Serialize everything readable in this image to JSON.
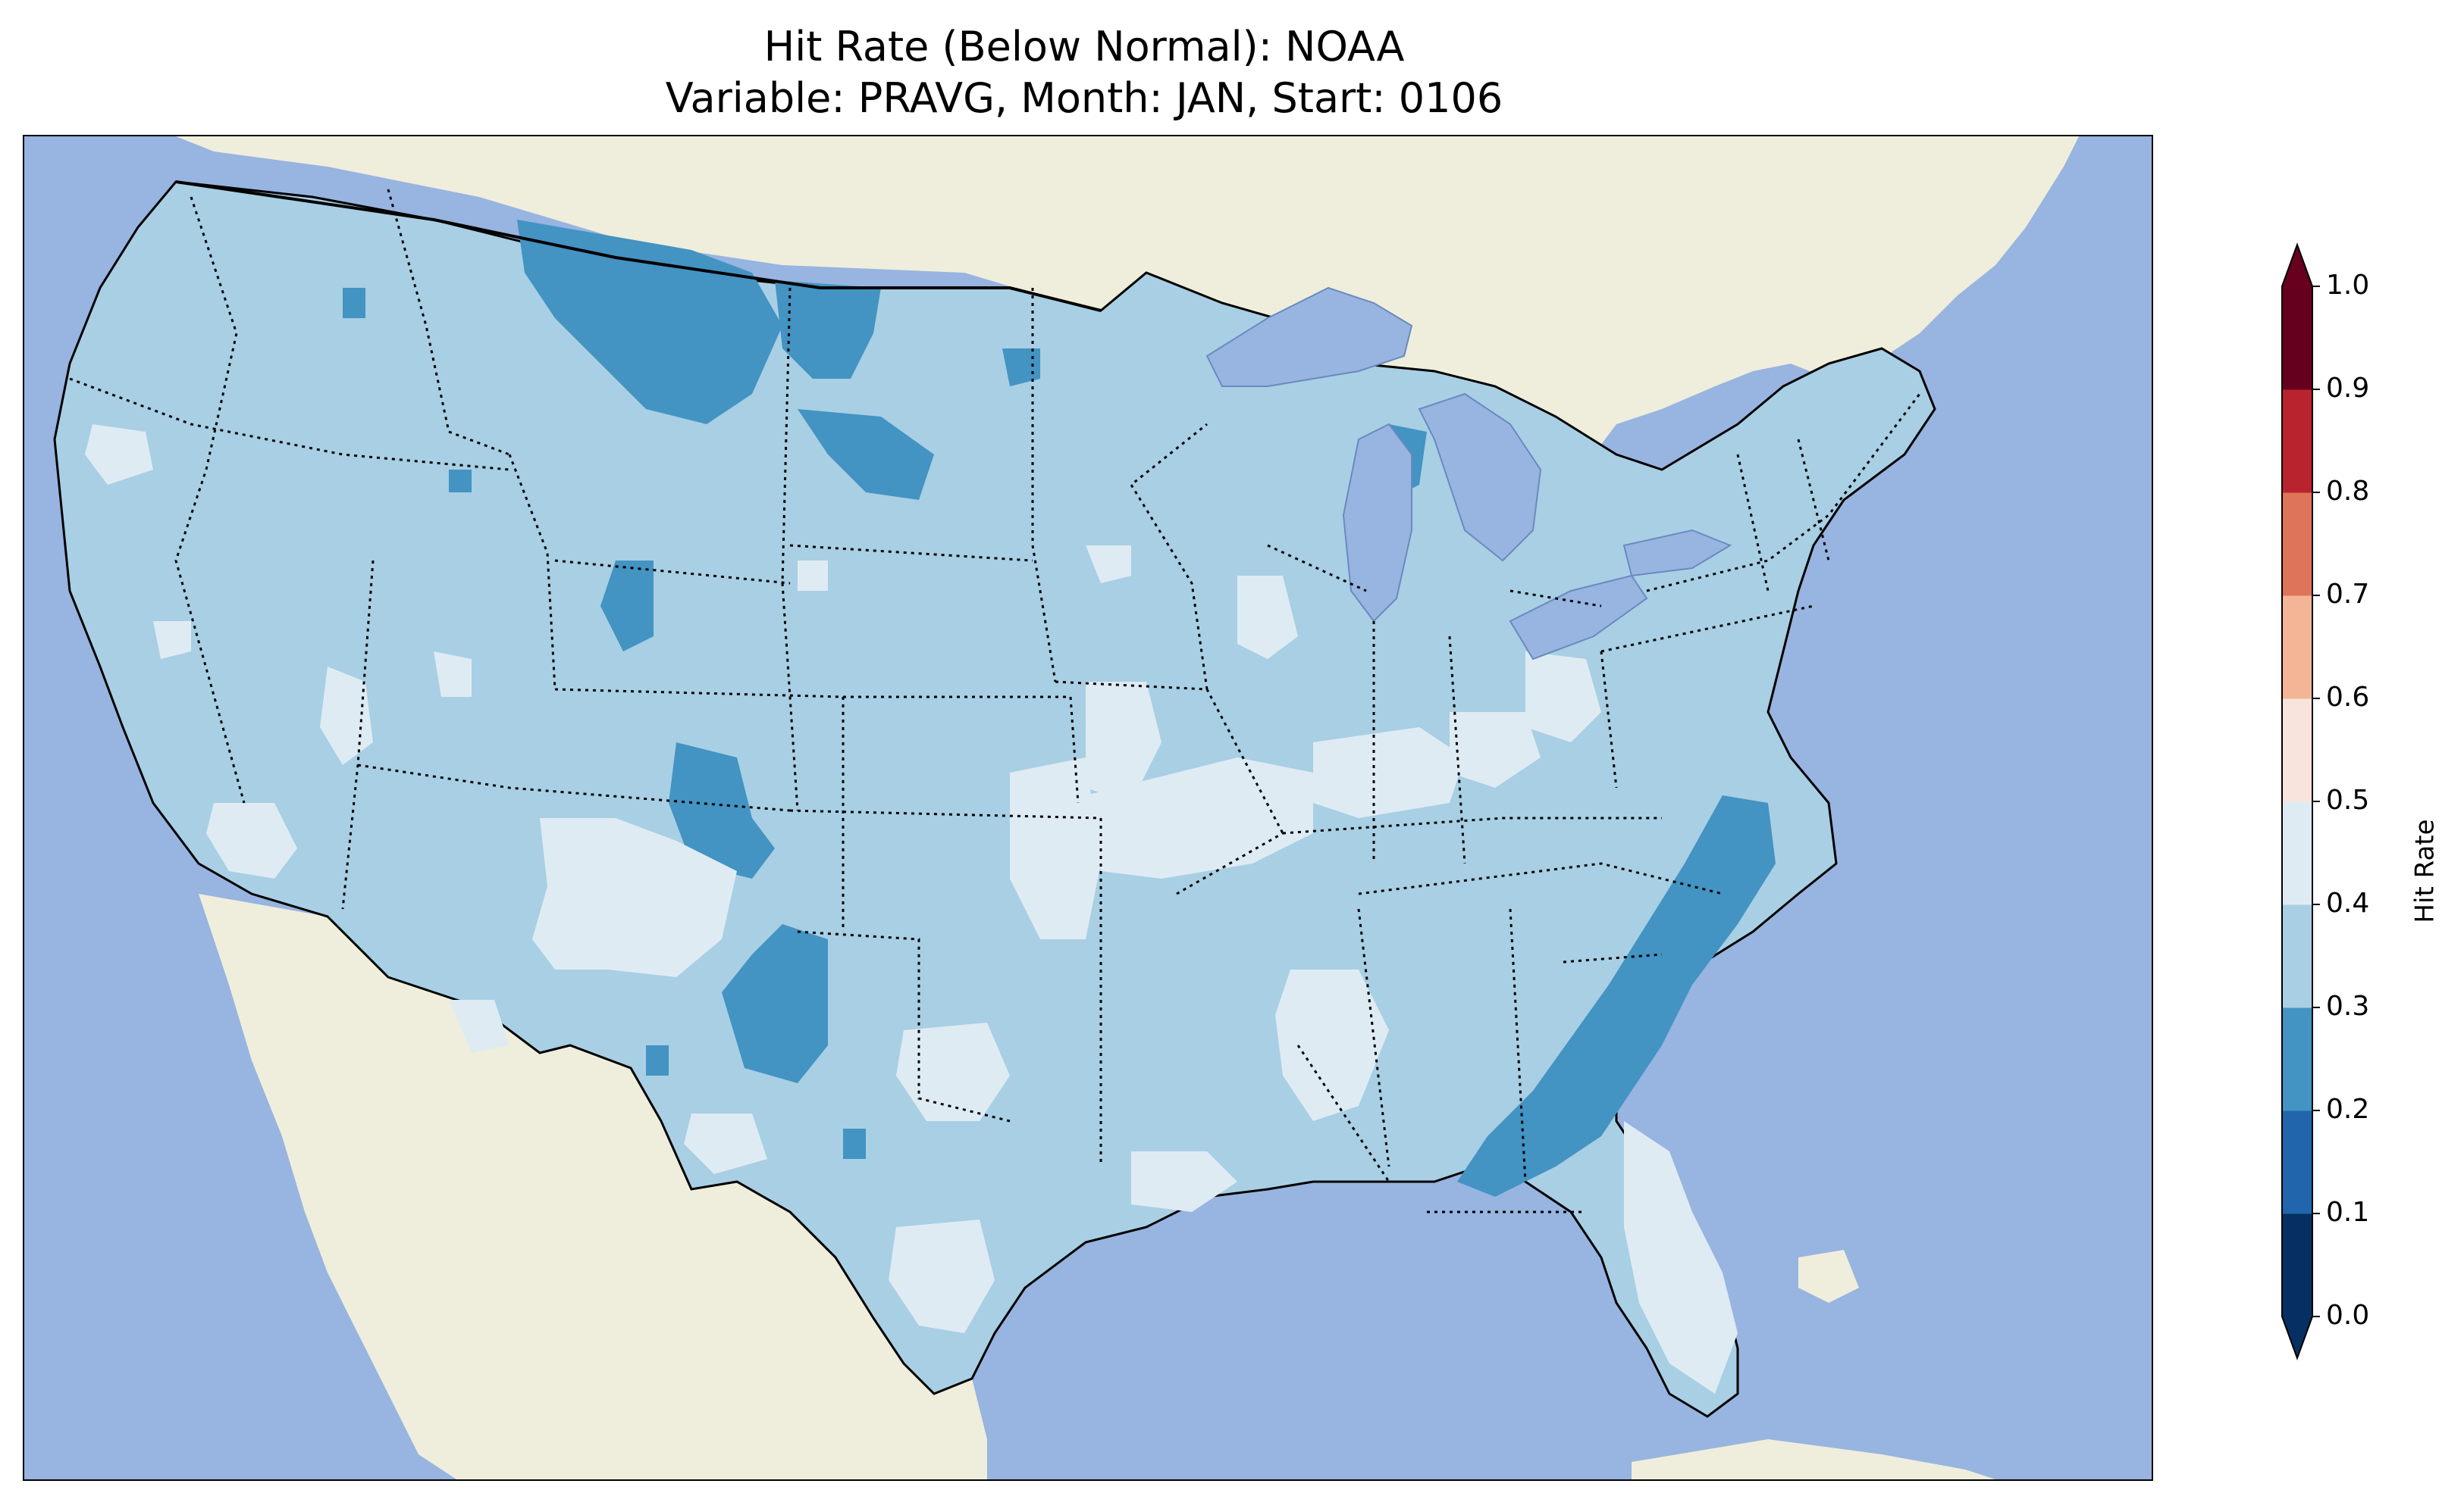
{
  "title": {
    "line1": "Hit Rate (Below Normal): NOAA",
    "line2": "Variable: PRAVG, Month: JAN, Start: 0106"
  },
  "colors": {
    "ocean": "#98b4e0",
    "land": "#efeedc",
    "lakes": "#98b4e0",
    "bin_0_1": "#053061",
    "bin_1_2": "#2166ac",
    "bin_2_3": "#4393c3",
    "bin_3_4": "#a8cfe4",
    "bin_4_5": "#dfebf3",
    "bin_5_6": "#f8e4dc",
    "bin_6_7": "#f4b596",
    "bin_7_8": "#de7559",
    "bin_8_9": "#b9232e",
    "bin_9_10": "#67001f"
  },
  "colorbar": {
    "label": "Hit Rate",
    "ticks": [
      "0.0",
      "0.1",
      "0.2",
      "0.3",
      "0.4",
      "0.5",
      "0.6",
      "0.7",
      "0.8",
      "0.9",
      "1.0"
    ],
    "extend": "both"
  },
  "map": {
    "projection": "Lambert Conformal",
    "region": "Contiguous United States",
    "dominant_value_range": [
      0.3,
      0.4
    ],
    "features": [
      "coastlines",
      "state borders",
      "country borders",
      "lakes"
    ]
  }
}
